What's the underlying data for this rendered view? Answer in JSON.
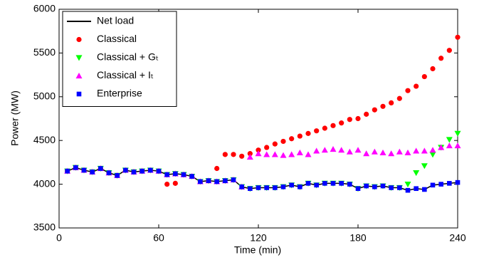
{
  "chart_data": {
    "type": "line",
    "xlabel": "Time (min)",
    "ylabel": "Power (MW)",
    "xlim": [
      0,
      240
    ],
    "xticks": [
      0,
      60,
      120,
      180,
      240
    ],
    "ylim": [
      3500,
      6000
    ],
    "yticks": [
      3500,
      4000,
      4500,
      5000,
      5500,
      6000
    ],
    "legend": "upper left",
    "x": [
      5,
      10,
      15,
      20,
      25,
      30,
      35,
      40,
      45,
      50,
      55,
      60,
      65,
      70,
      75,
      80,
      85,
      90,
      95,
      100,
      105,
      110,
      115,
      120,
      125,
      130,
      135,
      140,
      145,
      150,
      155,
      160,
      165,
      170,
      175,
      180,
      185,
      190,
      195,
      200,
      205,
      210,
      215,
      220,
      225,
      230,
      235,
      240
    ],
    "series": [
      {
        "name": "Net load",
        "color": "#000000",
        "marker": "line",
        "values": [
          4150,
          4190,
          4160,
          4140,
          4180,
          4130,
          4100,
          4160,
          4140,
          4150,
          4160,
          4150,
          4110,
          4120,
          4110,
          4090,
          4030,
          4040,
          4030,
          4040,
          4050,
          3970,
          3950,
          3960,
          3960,
          3960,
          3970,
          3990,
          3970,
          4010,
          3990,
          4010,
          4010,
          4010,
          4000,
          3950,
          3980,
          3970,
          3980,
          3960,
          3960,
          3930,
          3950,
          3940,
          3990,
          4000,
          4010,
          4020
        ]
      },
      {
        "name": "Classical",
        "color": "#ff0000",
        "marker": "circle",
        "values": [
          4150,
          4190,
          4160,
          4140,
          4180,
          4130,
          4100,
          4160,
          4140,
          4150,
          4160,
          4150,
          4000,
          4010,
          4110,
          4090,
          4030,
          4040,
          4180,
          4340,
          4340,
          4320,
          4350,
          4390,
          4420,
          4460,
          4490,
          4520,
          4550,
          4580,
          4610,
          4640,
          4670,
          4700,
          4740,
          4750,
          4800,
          4850,
          4890,
          4930,
          4980,
          5070,
          5120,
          5230,
          5320,
          5440,
          5530,
          5680
        ]
      },
      {
        "name": "Classical + Gₜ",
        "color": "#00ff00",
        "marker": "tri-down",
        "values": [
          4150,
          4190,
          4160,
          4140,
          4180,
          4130,
          4100,
          4160,
          4140,
          4150,
          4160,
          4150,
          4110,
          4120,
          4110,
          4090,
          4030,
          4040,
          4030,
          4040,
          4050,
          3970,
          3950,
          3960,
          3960,
          3960,
          3970,
          3990,
          3970,
          4010,
          3990,
          4010,
          4010,
          4010,
          4000,
          3950,
          3980,
          3970,
          3980,
          3960,
          3960,
          4000,
          4130,
          4210,
          4340,
          4420,
          4510,
          4580
        ]
      },
      {
        "name": "Classical + Iₜ",
        "color": "#ff00ff",
        "marker": "tri-up",
        "values": [
          4150,
          4190,
          4160,
          4140,
          4180,
          4130,
          4100,
          4160,
          4140,
          4150,
          4160,
          4150,
          4110,
          4120,
          4110,
          4090,
          4030,
          4040,
          4030,
          4040,
          4050,
          3970,
          4310,
          4350,
          4340,
          4340,
          4330,
          4340,
          4360,
          4340,
          4380,
          4390,
          4400,
          4390,
          4370,
          4390,
          4350,
          4370,
          4360,
          4350,
          4370,
          4360,
          4380,
          4380,
          4390,
          4420,
          4440,
          4440
        ]
      },
      {
        "name": "Enterprise",
        "color": "#0000ff",
        "marker": "square",
        "values": [
          4150,
          4190,
          4160,
          4140,
          4180,
          4130,
          4100,
          4160,
          4140,
          4150,
          4160,
          4150,
          4110,
          4120,
          4110,
          4090,
          4030,
          4040,
          4030,
          4040,
          4050,
          3970,
          3950,
          3960,
          3960,
          3960,
          3970,
          3990,
          3970,
          4010,
          3990,
          4010,
          4010,
          4010,
          4000,
          3950,
          3980,
          3970,
          3980,
          3960,
          3960,
          3930,
          3950,
          3940,
          3990,
          4000,
          4010,
          4020
        ]
      }
    ]
  }
}
